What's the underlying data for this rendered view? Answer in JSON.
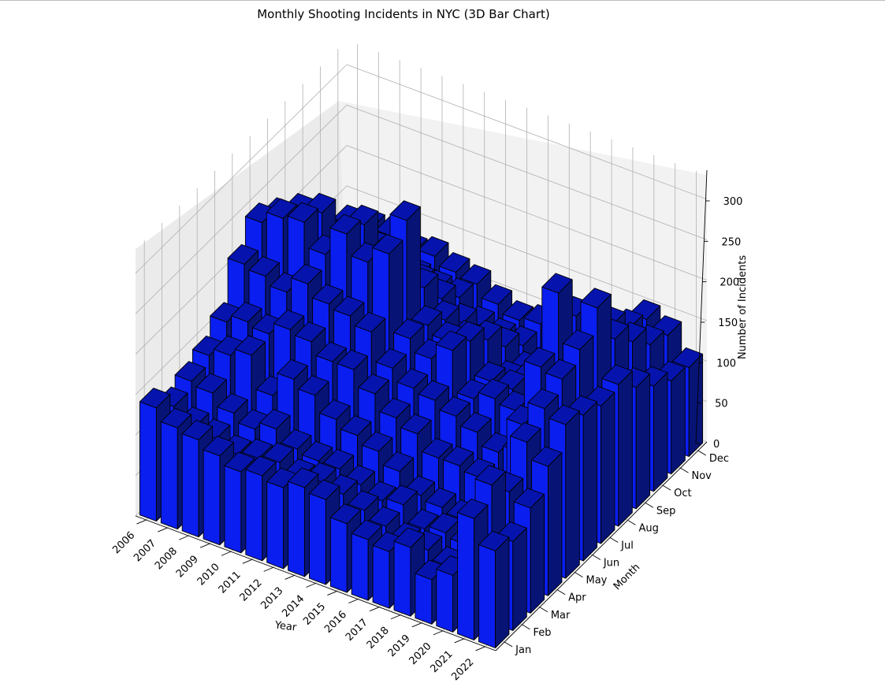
{
  "chart_data": {
    "type": "bar3d",
    "title": "Monthly Shooting Incidents in NYC (3D Bar Chart)",
    "xlabel": "Year",
    "ylabel": "Month",
    "zlabel": "Number of Incidents",
    "years": [
      "2006",
      "2007",
      "2008",
      "2009",
      "2010",
      "2011",
      "2012",
      "2013",
      "2014",
      "2015",
      "2016",
      "2017",
      "2018",
      "2019",
      "2020",
      "2021",
      "2022"
    ],
    "months": [
      "Jan",
      "Feb",
      "Mar",
      "Apr",
      "May",
      "Jun",
      "Jul",
      "Aug",
      "Sep",
      "Oct",
      "Nov",
      "Dec"
    ],
    "zlim": [
      0,
      330
    ],
    "zticks": [
      0,
      50,
      100,
      150,
      200,
      250,
      300
    ],
    "grid": true,
    "bar_color": "#0a1ef0",
    "values": [
      [
        140,
        125,
        120,
        110,
        100,
        105,
        100,
        110,
        105,
        85,
        75,
        70,
        85,
        55,
        70,
        150,
        120
      ],
      [
        120,
        105,
        100,
        90,
        95,
        100,
        90,
        95,
        90,
        80,
        70,
        60,
        60,
        50,
        50,
        170,
        110
      ],
      [
        130,
        125,
        110,
        100,
        110,
        95,
        90,
        90,
        80,
        70,
        75,
        55,
        60,
        55,
        60,
        140,
        130
      ],
      [
        140,
        150,
        160,
        120,
        150,
        140,
        120,
        110,
        100,
        85,
        65,
        60,
        55,
        70,
        85,
        180,
        160
      ],
      [
        160,
        170,
        165,
        180,
        175,
        160,
        160,
        140,
        120,
        110,
        90,
        90,
        85,
        80,
        170,
        200,
        190
      ],
      [
        210,
        205,
        195,
        215,
        200,
        195,
        185,
        150,
        135,
        130,
        120,
        110,
        95,
        105,
        220,
        215,
        180
      ],
      [
        240,
        255,
        260,
        230,
        265,
        240,
        260,
        165,
        150,
        170,
        120,
        130,
        125,
        120,
        290,
        230,
        170
      ],
      [
        225,
        240,
        250,
        205,
        255,
        225,
        280,
        160,
        150,
        160,
        120,
        120,
        105,
        115,
        240,
        260,
        175
      ],
      [
        180,
        195,
        190,
        170,
        200,
        185,
        175,
        145,
        130,
        140,
        100,
        110,
        95,
        90,
        200,
        200,
        150
      ],
      [
        150,
        165,
        150,
        150,
        160,
        150,
        140,
        120,
        105,
        110,
        90,
        85,
        80,
        85,
        185,
        175,
        130
      ],
      [
        135,
        125,
        130,
        120,
        125,
        120,
        120,
        95,
        90,
        90,
        75,
        70,
        65,
        70,
        160,
        150,
        115
      ],
      [
        130,
        135,
        135,
        125,
        130,
        120,
        115,
        100,
        90,
        95,
        70,
        70,
        60,
        70,
        150,
        140,
        110
      ]
    ]
  }
}
